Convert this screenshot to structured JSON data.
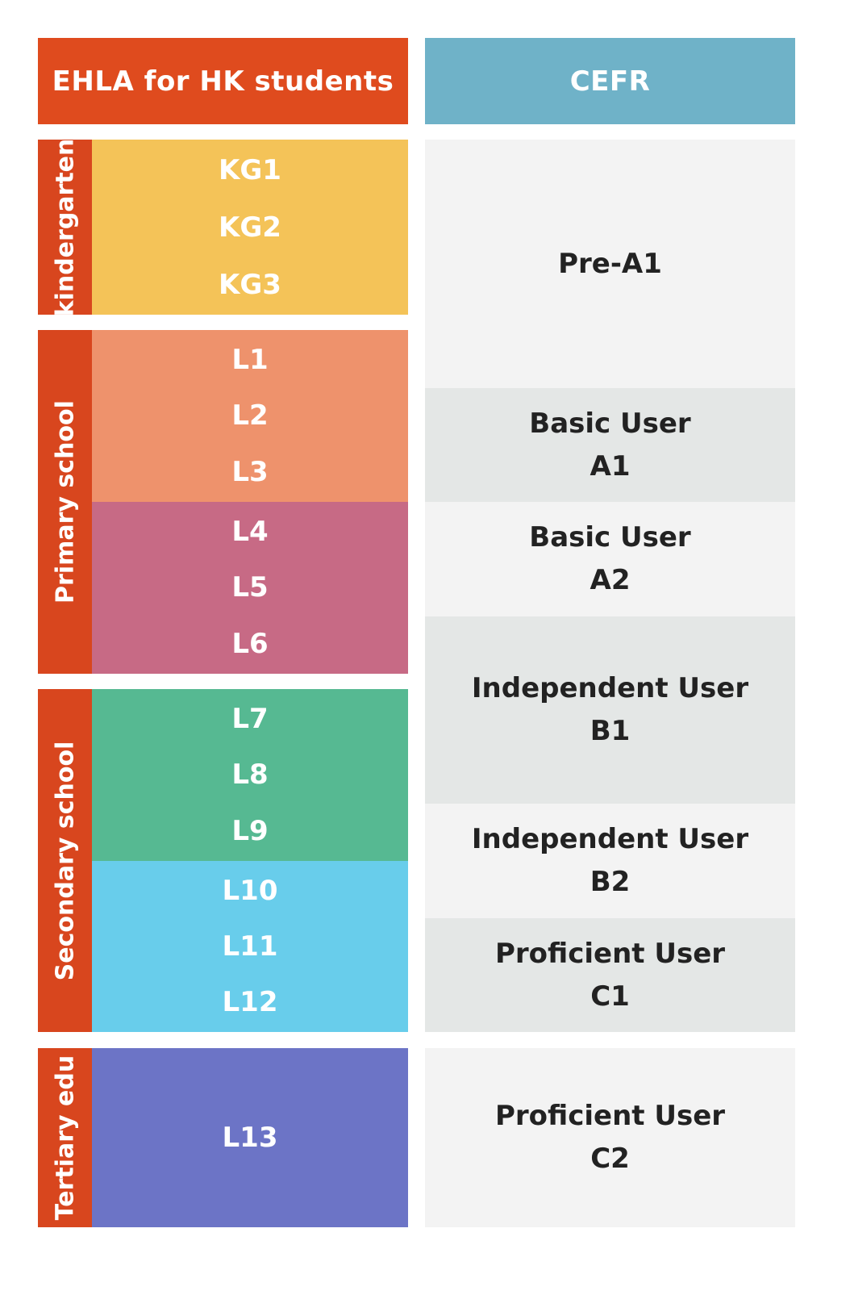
{
  "header": {
    "left": "EHLA for HK students",
    "right": "CEFR"
  },
  "stages": [
    {
      "label": "kindergarten"
    },
    {
      "label": "Primary school"
    },
    {
      "label": "Secondary school"
    },
    {
      "label": "Tertiary edu"
    }
  ],
  "bands": [
    {
      "color": "#f4c358",
      "levels": [
        "KG1",
        "KG2",
        "KG3"
      ]
    },
    {
      "color": "#ee926c",
      "levels": [
        "L1",
        "L2",
        "L3"
      ]
    },
    {
      "color": "#c76a85",
      "levels": [
        "L4",
        "L5",
        "L6"
      ]
    },
    {
      "color": "#56b992",
      "levels": [
        "L7",
        "L8",
        "L9"
      ]
    },
    {
      "color": "#68cdeb",
      "levels": [
        "L10",
        "L11",
        "L12"
      ]
    },
    {
      "color": "#6c74c6",
      "levels": [
        "L13"
      ]
    }
  ],
  "cefr": [
    {
      "lines": [
        "Pre-A1"
      ]
    },
    {
      "lines": [
        "Basic User",
        "A1"
      ]
    },
    {
      "lines": [
        "Basic User",
        "A2"
      ]
    },
    {
      "lines": [
        "Independent User",
        "B1"
      ]
    },
    {
      "lines": [
        "Independent User",
        "B2"
      ]
    },
    {
      "lines": [
        "Proficient User",
        "C1"
      ]
    },
    {
      "lines": [
        "Proficient User",
        "C2"
      ]
    }
  ],
  "colors": {
    "header_left": "#df4b1e",
    "header_right": "#6fb2c8",
    "stage_bar": "#d8461e",
    "cefr_light": "#f3f3f3",
    "cefr_dark": "#e4e7e6"
  }
}
